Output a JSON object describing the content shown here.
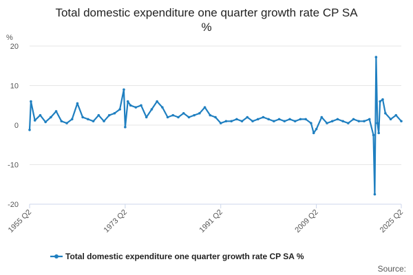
{
  "chart_data": {
    "type": "line",
    "title": "Total domestic expenditure one quarter growth rate CP SA",
    "subtitle": "%",
    "ylabel": "%",
    "xlabel": "",
    "ylim": [
      -20,
      20
    ],
    "yticks": [
      "20",
      "10",
      "0",
      "-10",
      "-20"
    ],
    "xtick_labels": [
      "1955 Q2",
      "1973 Q2",
      "1991 Q2",
      "2009 Q2",
      "2025 Q2"
    ],
    "x_range": [
      "1955 Q2",
      "2025 Q2"
    ],
    "grid": true,
    "legend": "bottom",
    "source_label": "Source:",
    "series": [
      {
        "name": "Total domestic expenditure one quarter growth rate CP SA %",
        "color": "#1f7fc0",
        "annual_approx": [
          {
            "x": "1955 Q2",
            "y": -1.2
          },
          {
            "x": "1955 Q3",
            "y": 6.0
          },
          {
            "x": "1956 Q2",
            "y": 1.2
          },
          {
            "x": "1957 Q2",
            "y": 2.5
          },
          {
            "x": "1958 Q2",
            "y": 0.8
          },
          {
            "x": "1959 Q2",
            "y": 2.0
          },
          {
            "x": "1960 Q2",
            "y": 3.5
          },
          {
            "x": "1961 Q2",
            "y": 1.0
          },
          {
            "x": "1962 Q2",
            "y": 0.5
          },
          {
            "x": "1963 Q2",
            "y": 1.5
          },
          {
            "x": "1964 Q2",
            "y": 5.5
          },
          {
            "x": "1965 Q2",
            "y": 2.0
          },
          {
            "x": "1966 Q2",
            "y": 1.5
          },
          {
            "x": "1967 Q2",
            "y": 1.0
          },
          {
            "x": "1968 Q2",
            "y": 2.5
          },
          {
            "x": "1969 Q2",
            "y": 1.0
          },
          {
            "x": "1970 Q2",
            "y": 2.5
          },
          {
            "x": "1971 Q2",
            "y": 3.0
          },
          {
            "x": "1972 Q2",
            "y": 4.0
          },
          {
            "x": "1973 Q1",
            "y": 9.0
          },
          {
            "x": "1973 Q2",
            "y": -0.5
          },
          {
            "x": "1973 Q4",
            "y": 6.0
          },
          {
            "x": "1974 Q2",
            "y": 5.0
          },
          {
            "x": "1975 Q2",
            "y": 4.5
          },
          {
            "x": "1976 Q2",
            "y": 5.0
          },
          {
            "x": "1977 Q2",
            "y": 2.0
          },
          {
            "x": "1978 Q2",
            "y": 4.0
          },
          {
            "x": "1979 Q2",
            "y": 6.0
          },
          {
            "x": "1980 Q2",
            "y": 4.5
          },
          {
            "x": "1981 Q2",
            "y": 2.0
          },
          {
            "x": "1982 Q2",
            "y": 2.5
          },
          {
            "x": "1983 Q2",
            "y": 2.0
          },
          {
            "x": "1984 Q2",
            "y": 3.0
          },
          {
            "x": "1985 Q2",
            "y": 2.0
          },
          {
            "x": "1986 Q2",
            "y": 2.5
          },
          {
            "x": "1987 Q2",
            "y": 3.0
          },
          {
            "x": "1988 Q2",
            "y": 4.5
          },
          {
            "x": "1989 Q2",
            "y": 2.5
          },
          {
            "x": "1990 Q2",
            "y": 2.0
          },
          {
            "x": "1991 Q2",
            "y": 0.5
          },
          {
            "x": "1992 Q2",
            "y": 1.0
          },
          {
            "x": "1993 Q2",
            "y": 1.0
          },
          {
            "x": "1994 Q2",
            "y": 1.5
          },
          {
            "x": "1995 Q2",
            "y": 1.0
          },
          {
            "x": "1996 Q2",
            "y": 2.0
          },
          {
            "x": "1997 Q2",
            "y": 1.0
          },
          {
            "x": "1998 Q2",
            "y": 1.5
          },
          {
            "x": "1999 Q2",
            "y": 2.0
          },
          {
            "x": "2000 Q2",
            "y": 1.5
          },
          {
            "x": "2001 Q2",
            "y": 1.0
          },
          {
            "x": "2002 Q2",
            "y": 1.5
          },
          {
            "x": "2003 Q2",
            "y": 1.0
          },
          {
            "x": "2004 Q2",
            "y": 1.5
          },
          {
            "x": "2005 Q2",
            "y": 1.0
          },
          {
            "x": "2006 Q2",
            "y": 1.5
          },
          {
            "x": "2007 Q2",
            "y": 1.5
          },
          {
            "x": "2008 Q2",
            "y": 0.5
          },
          {
            "x": "2008 Q4",
            "y": -2.0
          },
          {
            "x": "2009 Q2",
            "y": -1.0
          },
          {
            "x": "2010 Q2",
            "y": 2.0
          },
          {
            "x": "2011 Q2",
            "y": 0.5
          },
          {
            "x": "2012 Q2",
            "y": 1.0
          },
          {
            "x": "2013 Q2",
            "y": 1.5
          },
          {
            "x": "2014 Q2",
            "y": 1.0
          },
          {
            "x": "2015 Q2",
            "y": 0.5
          },
          {
            "x": "2016 Q2",
            "y": 1.5
          },
          {
            "x": "2017 Q2",
            "y": 1.0
          },
          {
            "x": "2018 Q2",
            "y": 1.0
          },
          {
            "x": "2019 Q2",
            "y": 1.5
          },
          {
            "x": "2020 Q1",
            "y": -2.5
          },
          {
            "x": "2020 Q2",
            "y": -17.5
          },
          {
            "x": "2020 Q3",
            "y": 17.2
          },
          {
            "x": "2020 Q4",
            "y": 0.5
          },
          {
            "x": "2021 Q1",
            "y": -2.0
          },
          {
            "x": "2021 Q2",
            "y": 6.0
          },
          {
            "x": "2021 Q4",
            "y": 6.5
          },
          {
            "x": "2022 Q2",
            "y": 3.0
          },
          {
            "x": "2023 Q2",
            "y": 1.5
          },
          {
            "x": "2024 Q2",
            "y": 2.5
          },
          {
            "x": "2025 Q2",
            "y": 1.0
          }
        ]
      }
    ]
  }
}
